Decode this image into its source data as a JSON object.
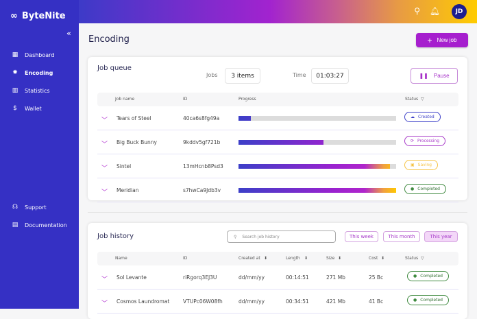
{
  "app": {
    "name": "ByteNite"
  },
  "sidebar": {
    "collapse_icon": "«",
    "items": [
      {
        "label": "Dashboard",
        "icon": "grid-icon"
      },
      {
        "label": "Encoding",
        "icon": "gear-icon"
      },
      {
        "label": "Statistics",
        "icon": "bar-chart-icon"
      },
      {
        "label": "Wallet",
        "icon": "dollar-icon"
      }
    ],
    "bottom": [
      {
        "label": "Support",
        "icon": "headset-icon"
      },
      {
        "label": "Documentation",
        "icon": "book-icon"
      }
    ]
  },
  "header": {
    "avatar": "JD"
  },
  "page": {
    "title": "Encoding",
    "new_job": "New job"
  },
  "queue": {
    "title": "Job queue",
    "jobs_label": "Jobs",
    "jobs_value": "3 items",
    "time_label": "Time",
    "time_value": "01:03:27",
    "pause": "Pause",
    "columns": [
      "Job name",
      "ID",
      "Progress",
      "Status"
    ],
    "rows": [
      {
        "name": "Tears of Steel",
        "id": "40ca6s8fg49a",
        "progress": 8,
        "status": "Created"
      },
      {
        "name": "Big Buck Bunny",
        "id": "9kddv5gf721b",
        "progress": 54,
        "status": "Processing"
      },
      {
        "name": "Sintel",
        "id": "13mHcnb8Psd3",
        "progress": 96,
        "status": "Saving"
      },
      {
        "name": "Meridian",
        "id": "s7hwCa9Jdb3v",
        "progress": 100,
        "status": "Completed"
      }
    ]
  },
  "history": {
    "title": "Job history",
    "search_placeholder": "Search job history",
    "filters": [
      "This week",
      "This month",
      "This year"
    ],
    "columns": [
      "Name",
      "ID",
      "Created at",
      "Length",
      "Size",
      "Cost",
      "Status"
    ],
    "rows": [
      {
        "name": "Sol Levante",
        "id": "riRgorq3EJ3U",
        "created": "dd/mm/yy",
        "length": "00:14:51",
        "size": "271 Mb",
        "cost": "25 Bc",
        "status": "Completed"
      },
      {
        "name": "Cosmos Laundromat",
        "id": "VTUPc06W08fh",
        "created": "dd/mm/yy",
        "length": "00:34:51",
        "size": "421 Mb",
        "cost": "41 Bc",
        "status": "Completed"
      }
    ]
  },
  "colors": {
    "sidebar": "#3530c4",
    "accent": "#a61fce",
    "created": "#3c3fc8",
    "processing": "#a638c8",
    "saving": "#f5c242",
    "completed": "#3f8a3f"
  }
}
